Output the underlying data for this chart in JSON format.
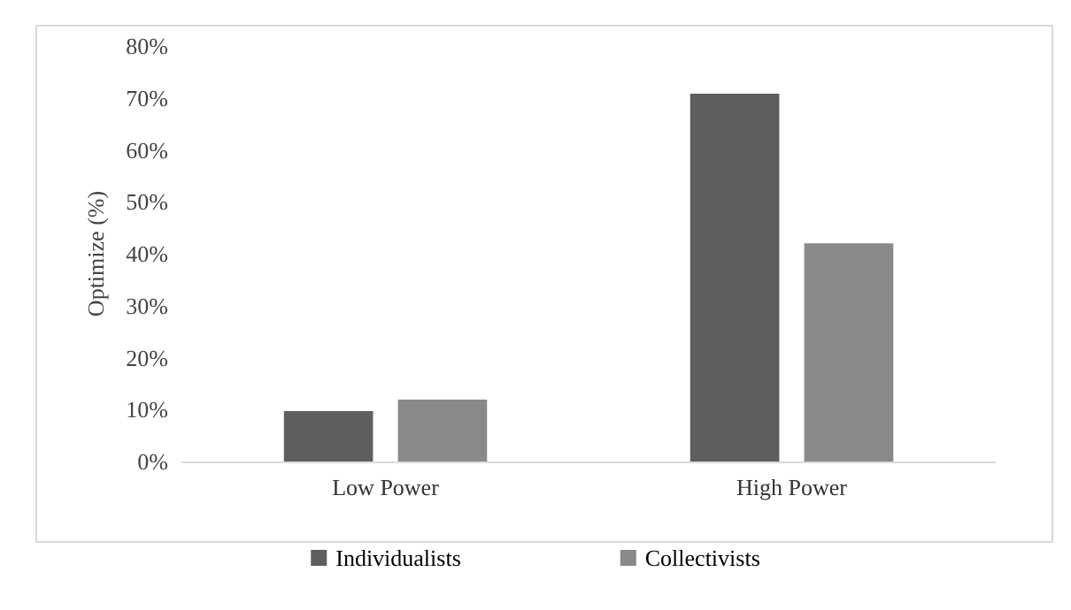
{
  "chart_data": {
    "type": "bar",
    "ylabel": "Optimize (%)",
    "categories": [
      "Low Power",
      "High Power"
    ],
    "series": [
      {
        "name": "Individualists",
        "color": "#5e5e5e",
        "values": [
          9.7,
          70.8
        ]
      },
      {
        "name": "Collectivists",
        "color": "#898989",
        "values": [
          11.9,
          42
        ]
      }
    ],
    "ylim": [
      0,
      80
    ],
    "yticks": [
      {
        "value": 0,
        "label": "0%"
      },
      {
        "value": 10,
        "label": "10%"
      },
      {
        "value": 20,
        "label": "20%"
      },
      {
        "value": 30,
        "label": "30%"
      },
      {
        "value": 40,
        "label": "40%"
      },
      {
        "value": 50,
        "label": "50%"
      },
      {
        "value": 60,
        "label": "60%"
      },
      {
        "value": 70,
        "label": "70%"
      },
      {
        "value": 80,
        "label": "80%"
      }
    ],
    "grid": false,
    "legend": "bottom"
  }
}
